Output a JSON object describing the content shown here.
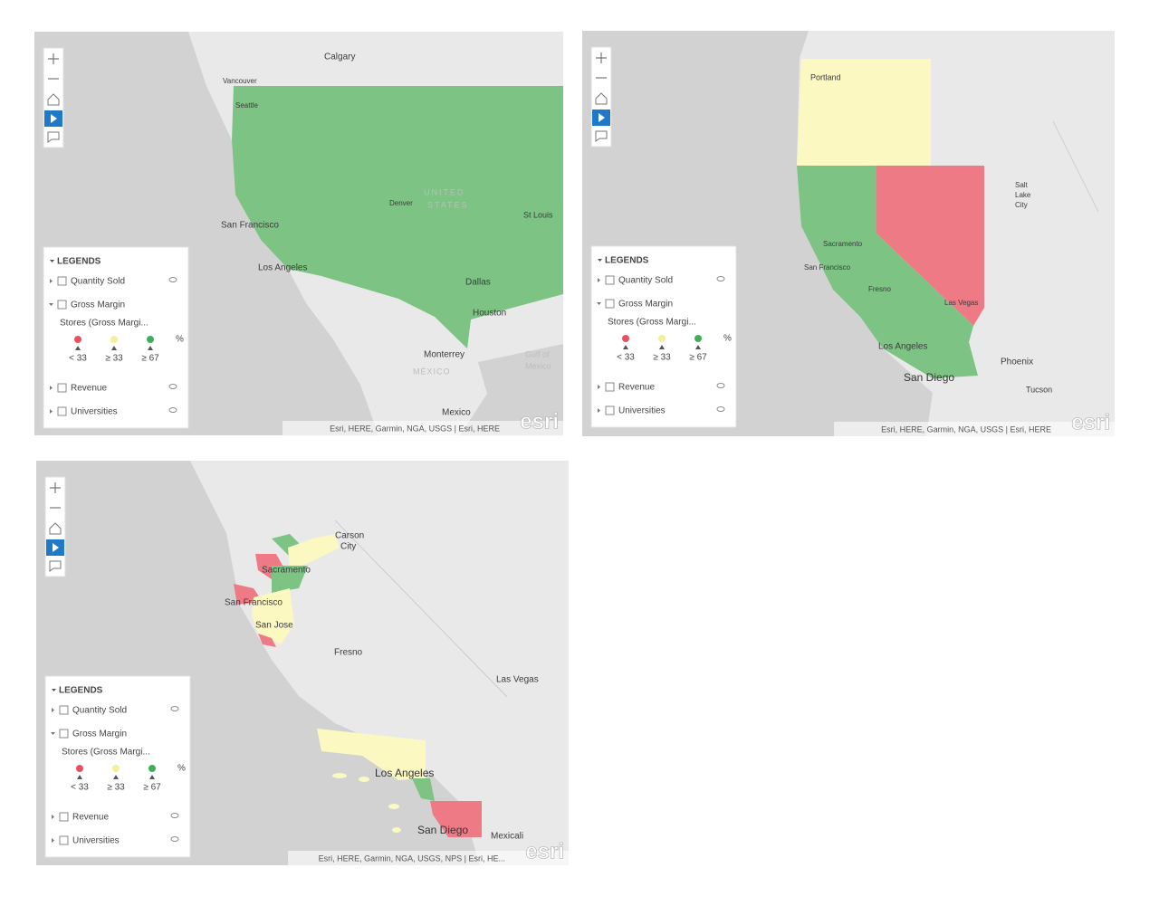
{
  "maps": [
    {
      "place_labels": [
        "Calgary",
        "Vancouver",
        "Seattle",
        "UNITED",
        "STATES",
        "Denver",
        "St Louis",
        "San Francisco",
        "Los Angeles",
        "Dallas",
        "Houston",
        "Monterrey",
        "MÉXICO",
        "Gulf of",
        "Mexico",
        "Mexico"
      ],
      "legend": {
        "title": "LEGENDS",
        "layers": [
          "Quantity Sold",
          "Gross Margin",
          "Revenue",
          "Universities"
        ],
        "sublayer": "Stores (Gross Margi...",
        "classes": [
          "< 33",
          "≥ 33",
          "≥ 67"
        ],
        "unit": "%"
      },
      "attribution": "Esri, HERE, Garmin, NGA, USGS | Esri, HERE",
      "logo": "esri"
    },
    {
      "place_labels": [
        "Portland",
        "Salt",
        "Lake",
        "City",
        "Sacramento",
        "San Francisco",
        "Fresno",
        "Las Vegas",
        "Los Angeles",
        "San Diego",
        "Phoenix",
        "Tucson"
      ],
      "legend": {
        "title": "LEGENDS",
        "layers": [
          "Quantity Sold",
          "Gross Margin",
          "Revenue",
          "Universities"
        ],
        "sublayer": "Stores (Gross Margi...",
        "classes": [
          "< 33",
          "≥ 33",
          "≥ 67"
        ],
        "unit": "%"
      },
      "attribution": "Esri, HERE, Garmin, NGA, USGS | Esri, HERE",
      "logo": "esri"
    },
    {
      "place_labels": [
        "Carson",
        "City",
        "Sacramento",
        "San Francisco",
        "San Jose",
        "Fresno",
        "Las Vegas",
        "Los Angeles",
        "San Diego",
        "Mexicali"
      ],
      "legend": {
        "title": "LEGENDS",
        "layers": [
          "Quantity Sold",
          "Gross Margin",
          "Revenue",
          "Universities"
        ],
        "sublayer": "Stores (Gross Margi...",
        "classes": [
          "< 33",
          "≥ 33",
          "≥ 67"
        ],
        "unit": "%"
      },
      "attribution": "Esri, HERE, Garmin, NGA, USGS, NPS | Esri, HE...",
      "logo": "esri"
    }
  ]
}
